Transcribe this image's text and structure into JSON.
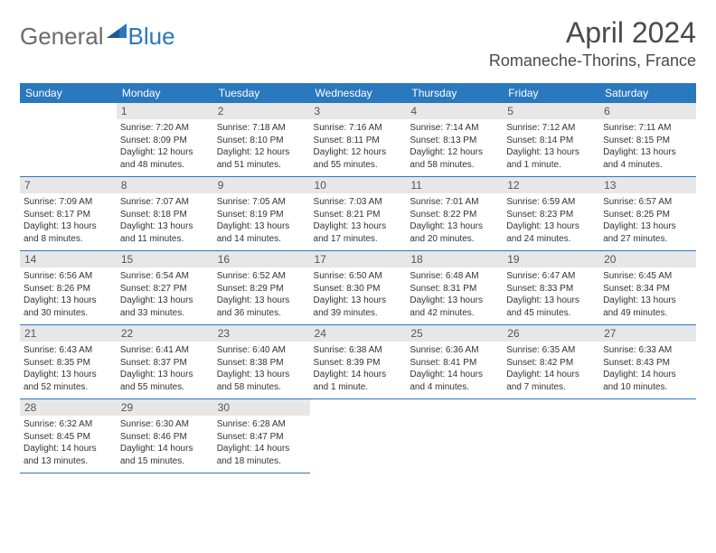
{
  "logo": {
    "general": "General",
    "blue": "Blue"
  },
  "title": "April 2024",
  "location": "Romaneche-Thorins, France",
  "colors": {
    "header_bg": "#2a78bd",
    "header_text": "#ffffff",
    "daynum_bg": "#e7e7e7",
    "daynum_text": "#555555",
    "border": "#2a78bd",
    "body_text": "#333333",
    "title_text": "#4a4a4a",
    "logo_gray": "#6b6b6b",
    "logo_blue": "#2a78bd"
  },
  "day_headers": [
    "Sunday",
    "Monday",
    "Tuesday",
    "Wednesday",
    "Thursday",
    "Friday",
    "Saturday"
  ],
  "weeks": [
    [
      {
        "n": "",
        "sr": "",
        "ss": "",
        "dl": ""
      },
      {
        "n": "1",
        "sr": "Sunrise: 7:20 AM",
        "ss": "Sunset: 8:09 PM",
        "dl": "Daylight: 12 hours and 48 minutes."
      },
      {
        "n": "2",
        "sr": "Sunrise: 7:18 AM",
        "ss": "Sunset: 8:10 PM",
        "dl": "Daylight: 12 hours and 51 minutes."
      },
      {
        "n": "3",
        "sr": "Sunrise: 7:16 AM",
        "ss": "Sunset: 8:11 PM",
        "dl": "Daylight: 12 hours and 55 minutes."
      },
      {
        "n": "4",
        "sr": "Sunrise: 7:14 AM",
        "ss": "Sunset: 8:13 PM",
        "dl": "Daylight: 12 hours and 58 minutes."
      },
      {
        "n": "5",
        "sr": "Sunrise: 7:12 AM",
        "ss": "Sunset: 8:14 PM",
        "dl": "Daylight: 13 hours and 1 minute."
      },
      {
        "n": "6",
        "sr": "Sunrise: 7:11 AM",
        "ss": "Sunset: 8:15 PM",
        "dl": "Daylight: 13 hours and 4 minutes."
      }
    ],
    [
      {
        "n": "7",
        "sr": "Sunrise: 7:09 AM",
        "ss": "Sunset: 8:17 PM",
        "dl": "Daylight: 13 hours and 8 minutes."
      },
      {
        "n": "8",
        "sr": "Sunrise: 7:07 AM",
        "ss": "Sunset: 8:18 PM",
        "dl": "Daylight: 13 hours and 11 minutes."
      },
      {
        "n": "9",
        "sr": "Sunrise: 7:05 AM",
        "ss": "Sunset: 8:19 PM",
        "dl": "Daylight: 13 hours and 14 minutes."
      },
      {
        "n": "10",
        "sr": "Sunrise: 7:03 AM",
        "ss": "Sunset: 8:21 PM",
        "dl": "Daylight: 13 hours and 17 minutes."
      },
      {
        "n": "11",
        "sr": "Sunrise: 7:01 AM",
        "ss": "Sunset: 8:22 PM",
        "dl": "Daylight: 13 hours and 20 minutes."
      },
      {
        "n": "12",
        "sr": "Sunrise: 6:59 AM",
        "ss": "Sunset: 8:23 PM",
        "dl": "Daylight: 13 hours and 24 minutes."
      },
      {
        "n": "13",
        "sr": "Sunrise: 6:57 AM",
        "ss": "Sunset: 8:25 PM",
        "dl": "Daylight: 13 hours and 27 minutes."
      }
    ],
    [
      {
        "n": "14",
        "sr": "Sunrise: 6:56 AM",
        "ss": "Sunset: 8:26 PM",
        "dl": "Daylight: 13 hours and 30 minutes."
      },
      {
        "n": "15",
        "sr": "Sunrise: 6:54 AM",
        "ss": "Sunset: 8:27 PM",
        "dl": "Daylight: 13 hours and 33 minutes."
      },
      {
        "n": "16",
        "sr": "Sunrise: 6:52 AM",
        "ss": "Sunset: 8:29 PM",
        "dl": "Daylight: 13 hours and 36 minutes."
      },
      {
        "n": "17",
        "sr": "Sunrise: 6:50 AM",
        "ss": "Sunset: 8:30 PM",
        "dl": "Daylight: 13 hours and 39 minutes."
      },
      {
        "n": "18",
        "sr": "Sunrise: 6:48 AM",
        "ss": "Sunset: 8:31 PM",
        "dl": "Daylight: 13 hours and 42 minutes."
      },
      {
        "n": "19",
        "sr": "Sunrise: 6:47 AM",
        "ss": "Sunset: 8:33 PM",
        "dl": "Daylight: 13 hours and 45 minutes."
      },
      {
        "n": "20",
        "sr": "Sunrise: 6:45 AM",
        "ss": "Sunset: 8:34 PM",
        "dl": "Daylight: 13 hours and 49 minutes."
      }
    ],
    [
      {
        "n": "21",
        "sr": "Sunrise: 6:43 AM",
        "ss": "Sunset: 8:35 PM",
        "dl": "Daylight: 13 hours and 52 minutes."
      },
      {
        "n": "22",
        "sr": "Sunrise: 6:41 AM",
        "ss": "Sunset: 8:37 PM",
        "dl": "Daylight: 13 hours and 55 minutes."
      },
      {
        "n": "23",
        "sr": "Sunrise: 6:40 AM",
        "ss": "Sunset: 8:38 PM",
        "dl": "Daylight: 13 hours and 58 minutes."
      },
      {
        "n": "24",
        "sr": "Sunrise: 6:38 AM",
        "ss": "Sunset: 8:39 PM",
        "dl": "Daylight: 14 hours and 1 minute."
      },
      {
        "n": "25",
        "sr": "Sunrise: 6:36 AM",
        "ss": "Sunset: 8:41 PM",
        "dl": "Daylight: 14 hours and 4 minutes."
      },
      {
        "n": "26",
        "sr": "Sunrise: 6:35 AM",
        "ss": "Sunset: 8:42 PM",
        "dl": "Daylight: 14 hours and 7 minutes."
      },
      {
        "n": "27",
        "sr": "Sunrise: 6:33 AM",
        "ss": "Sunset: 8:43 PM",
        "dl": "Daylight: 14 hours and 10 minutes."
      }
    ],
    [
      {
        "n": "28",
        "sr": "Sunrise: 6:32 AM",
        "ss": "Sunset: 8:45 PM",
        "dl": "Daylight: 14 hours and 13 minutes."
      },
      {
        "n": "29",
        "sr": "Sunrise: 6:30 AM",
        "ss": "Sunset: 8:46 PM",
        "dl": "Daylight: 14 hours and 15 minutes."
      },
      {
        "n": "30",
        "sr": "Sunrise: 6:28 AM",
        "ss": "Sunset: 8:47 PM",
        "dl": "Daylight: 14 hours and 18 minutes."
      },
      {
        "n": "",
        "sr": "",
        "ss": "",
        "dl": ""
      },
      {
        "n": "",
        "sr": "",
        "ss": "",
        "dl": ""
      },
      {
        "n": "",
        "sr": "",
        "ss": "",
        "dl": ""
      },
      {
        "n": "",
        "sr": "",
        "ss": "",
        "dl": ""
      }
    ]
  ]
}
